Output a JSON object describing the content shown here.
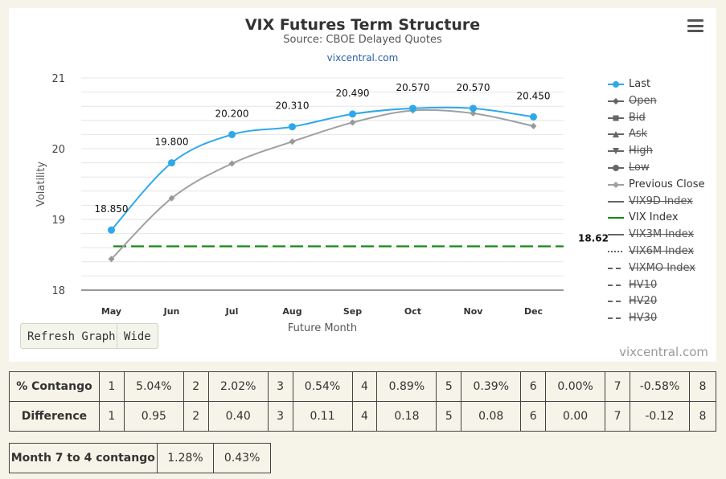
{
  "chart_data": {
    "type": "line",
    "title": "VIX Futures Term Structure",
    "subtitle": "Source: CBOE Delayed Quotes",
    "source_link": "vixcentral.com",
    "credit": "vixcentral.com",
    "xlabel": "Future Month",
    "ylabel": "Volatility",
    "categories": [
      "May",
      "Jun",
      "Jul",
      "Aug",
      "Sep",
      "Oct",
      "Nov",
      "Dec"
    ],
    "ylim": [
      18,
      21
    ],
    "yticks": [
      "18",
      "19",
      "20",
      "21"
    ],
    "grid": true,
    "legend_position": "right",
    "series": [
      {
        "name": "Last",
        "values": [
          18.85,
          19.8,
          20.2,
          20.31,
          20.49,
          20.57,
          20.57,
          20.45
        ],
        "labels": [
          "18.850",
          "19.800",
          "20.200",
          "20.310",
          "20.490",
          "20.570",
          "20.570",
          "20.450"
        ],
        "color": "#2fa8ea"
      },
      {
        "name": "Previous Close",
        "values": [
          18.44,
          19.3,
          19.79,
          20.1,
          20.37,
          20.54,
          20.5,
          20.32
        ],
        "color": "#a0a0a0"
      },
      {
        "name": "VIX Index",
        "value": 18.62,
        "label": "18.62",
        "color": "#118811",
        "dashed": true
      }
    ],
    "legend": [
      {
        "name": "Last",
        "active": true,
        "symbol": "circle",
        "color": "#2fa8ea"
      },
      {
        "name": "Open",
        "active": false,
        "symbol": "diamond",
        "color": "#666666"
      },
      {
        "name": "Bid",
        "active": false,
        "symbol": "square",
        "color": "#666666"
      },
      {
        "name": "Ask",
        "active": false,
        "symbol": "triangle",
        "color": "#666666"
      },
      {
        "name": "High",
        "active": false,
        "symbol": "triangle-down",
        "color": "#666666"
      },
      {
        "name": "Low",
        "active": false,
        "symbol": "circle",
        "color": "#666666"
      },
      {
        "name": "Previous Close",
        "active": true,
        "symbol": "diamond",
        "color": "#a0a0a0"
      },
      {
        "name": "VIX9D Index",
        "active": false,
        "symbol": "line",
        "color": "#666666"
      },
      {
        "name": "VIX Index",
        "active": true,
        "symbol": "line",
        "color": "#118811"
      },
      {
        "name": "VIX3M Index",
        "active": false,
        "symbol": "line",
        "color": "#666666"
      },
      {
        "name": "VIX6M Index",
        "active": false,
        "symbol": "dotted",
        "color": "#666666"
      },
      {
        "name": "VIXMO Index",
        "active": false,
        "symbol": "dashdot",
        "color": "#666666"
      },
      {
        "name": "HV10",
        "active": false,
        "symbol": "dashdot",
        "color": "#666666"
      },
      {
        "name": "HV20",
        "active": false,
        "symbol": "dashdot",
        "color": "#666666"
      },
      {
        "name": "HV30",
        "active": false,
        "symbol": "dashdot",
        "color": "#666666"
      }
    ]
  },
  "buttons": {
    "refresh": "Refresh Graph",
    "wide": "Wide"
  },
  "contango_table": {
    "rows": [
      {
        "label": "% Contango",
        "cells": [
          "1",
          "5.04%",
          "2",
          "2.02%",
          "3",
          "0.54%",
          "4",
          "0.89%",
          "5",
          "0.39%",
          "6",
          "0.00%",
          "7",
          "-0.58%",
          "8"
        ]
      },
      {
        "label": "Difference",
        "cells": [
          "1",
          "0.95",
          "2",
          "0.40",
          "3",
          "0.11",
          "4",
          "0.18",
          "5",
          "0.08",
          "6",
          "0.00",
          "7",
          "-0.12",
          "8"
        ]
      }
    ]
  },
  "month_table": {
    "label": "Month 7 to 4 contango",
    "values": [
      "1.28%",
      "0.43%"
    ]
  }
}
